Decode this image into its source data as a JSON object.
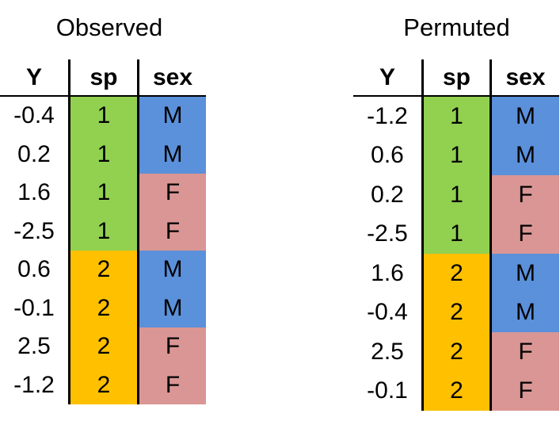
{
  "colors": {
    "sp1": "#92d050",
    "sp2": "#ffc000",
    "male": "#5b90da",
    "female": "#da9694"
  },
  "observed": {
    "title": "Observed",
    "headers": [
      "Y",
      "sp",
      "sex"
    ],
    "rows": [
      {
        "y": "-0.4",
        "sp": "1",
        "sex": "M"
      },
      {
        "y": "0.2",
        "sp": "1",
        "sex": "M"
      },
      {
        "y": "1.6",
        "sp": "1",
        "sex": "F"
      },
      {
        "y": "-2.5",
        "sp": "1",
        "sex": "F"
      },
      {
        "y": "0.6",
        "sp": "2",
        "sex": "M"
      },
      {
        "y": "-0.1",
        "sp": "2",
        "sex": "M"
      },
      {
        "y": "2.5",
        "sp": "2",
        "sex": "F"
      },
      {
        "y": "-1.2",
        "sp": "2",
        "sex": "F"
      }
    ]
  },
  "permuted": {
    "title": "Permuted",
    "headers": [
      "Y",
      "sp",
      "sex"
    ],
    "rows": [
      {
        "y": "-1.2",
        "sp": "1",
        "sex": "M"
      },
      {
        "y": "0.6",
        "sp": "1",
        "sex": "M"
      },
      {
        "y": "0.2",
        "sp": "1",
        "sex": "F"
      },
      {
        "y": "-2.5",
        "sp": "1",
        "sex": "F"
      },
      {
        "y": "1.6",
        "sp": "2",
        "sex": "M"
      },
      {
        "y": "-0.4",
        "sp": "2",
        "sex": "M"
      },
      {
        "y": "2.5",
        "sp": "2",
        "sex": "F"
      },
      {
        "y": "-0.1",
        "sp": "2",
        "sex": "F"
      }
    ]
  }
}
